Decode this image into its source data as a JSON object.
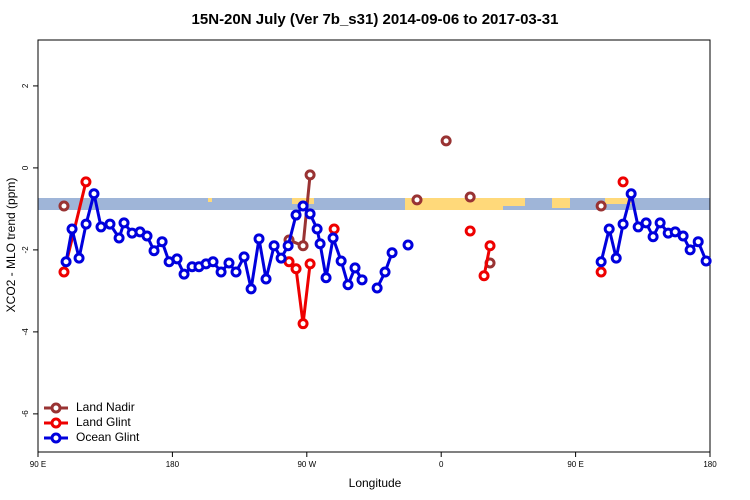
{
  "chart_data": {
    "type": "line",
    "title": "15N-20N July (Ver 7b_s31)   2014-09-06 to 2017-03-31",
    "x_label": "Longitude",
    "y_label": "XCO2 - MLO trend (ppm)",
    "xlim": [
      90,
      540
    ],
    "ylim": [
      -6.93,
      3.12
    ],
    "xticks": [
      {
        "value": 90,
        "label": "90 E"
      },
      180,
      {
        "value": 270,
        "label": "90 W"
      },
      {
        "value": 360,
        "label": "0"
      },
      {
        "value": 450,
        "label": "90 E"
      },
      {
        "value": 540,
        "label": "180"
      }
    ],
    "yticks": [
      -6,
      -4,
      -2,
      0,
      2
    ],
    "legend": "bottom-left",
    "series": [
      {
        "name": "Land Nadir",
        "color": "#993333",
        "x": [
          107.4,
          null,
          258.1,
          267.5,
          272.2,
          null,
          343.8,
          null,
          363.3,
          null,
          379.4,
          null,
          392.7,
          null,
          467.1
        ],
        "values": [
          -0.93,
          null,
          -1.76,
          -1.9,
          -0.17,
          null,
          -0.78,
          null,
          0.66,
          null,
          -0.71,
          null,
          -2.32,
          null,
          -0.93
        ]
      },
      {
        "name": "Land Glint",
        "color": "#ee0000",
        "x": [
          107.4,
          122.1,
          null,
          258.1,
          262.8,
          267.5,
          272.2,
          null,
          288.3,
          null,
          379.4,
          null,
          388.7,
          392.7,
          null,
          467.1,
          null,
          481.8
        ],
        "values": [
          -2.54,
          -0.34,
          null,
          -2.29,
          -2.46,
          -3.8,
          -2.34,
          null,
          -1.49,
          null,
          -1.54,
          null,
          -2.63,
          -1.9,
          null,
          -2.54,
          null,
          -0.34
        ]
      },
      {
        "name": "Ocean Glint",
        "color": "#0000dd",
        "x": [
          108.8,
          112.8,
          117.5,
          122.2,
          127.5,
          132.2,
          138.2,
          144.3,
          147.6,
          153.0,
          158.3,
          163.0,
          167.7,
          173.1,
          177.8,
          183.1,
          187.8,
          193.2,
          197.8,
          202.5,
          207.2,
          212.6,
          217.9,
          222.6,
          228.0,
          232.7,
          238.0,
          242.7,
          248.1,
          252.8,
          257.5,
          262.8,
          267.5,
          272.2,
          276.9,
          278.9,
          282.9,
          287.6,
          293.0,
          297.6,
          302.3,
          307.0,
          null,
          317.1,
          322.4,
          327.1,
          null,
          337.8,
          null,
          467.1,
          472.5,
          477.2,
          481.8,
          487.2,
          491.9,
          497.2,
          501.9,
          506.6,
          512.0,
          516.7,
          522.0,
          526.7,
          532.1,
          537.4
        ],
        "values": [
          -2.29,
          -1.49,
          -2.2,
          -1.37,
          -0.63,
          -1.44,
          -1.37,
          -1.71,
          -1.34,
          -1.59,
          -1.56,
          -1.66,
          -2.02,
          -1.8,
          -2.29,
          -2.22,
          -2.59,
          -2.41,
          -2.41,
          -2.34,
          -2.29,
          -2.54,
          -2.32,
          -2.54,
          -2.17,
          -2.95,
          -1.73,
          -2.71,
          -1.9,
          -2.2,
          -1.9,
          -1.15,
          -0.93,
          -1.12,
          -1.49,
          -1.85,
          -2.68,
          -1.71,
          -2.27,
          -2.85,
          -2.44,
          -2.73,
          null,
          -2.93,
          -2.54,
          -2.07,
          null,
          -1.88,
          null,
          -2.29,
          -1.49,
          -2.2,
          -1.37,
          -0.63,
          -1.44,
          -1.34,
          -1.68,
          -1.34,
          -1.59,
          -1.56,
          -1.66,
          -2.0,
          -1.8,
          -2.27
        ]
      }
    ]
  }
}
